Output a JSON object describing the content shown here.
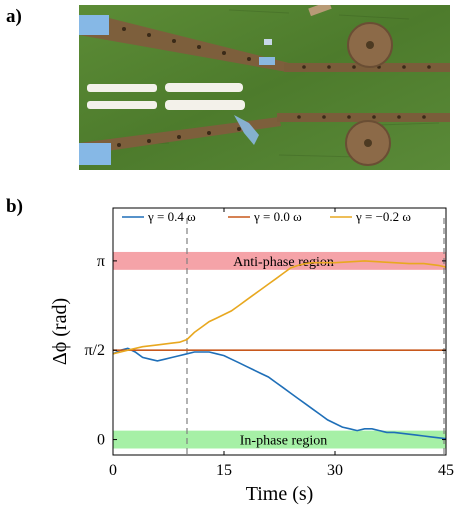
{
  "panels": {
    "a": "a)",
    "b": "b)"
  },
  "photo": {
    "icon": "robot-fish-photo",
    "colors": {
      "grass": "#4f7d2f",
      "grass_light": "#6a9a42",
      "strip": "#8a6a44",
      "tape": "#7fb0e0"
    }
  },
  "chart_data": {
    "type": "line",
    "xlabel": "Time (s)",
    "ylabel": "Δϕ (rad)",
    "xlim": [
      0,
      45
    ],
    "ylim": [
      -0.0864,
      1.296
    ],
    "x_ticks": [
      {
        "value": 0,
        "label": "0"
      },
      {
        "value": 15,
        "label": "15"
      },
      {
        "value": 30,
        "label": "30"
      },
      {
        "value": 45,
        "label": "45"
      }
    ],
    "y_ticks": [
      {
        "value": 0,
        "label": "0"
      },
      {
        "value": 0.5,
        "label": "π/2"
      },
      {
        "value": 1,
        "label": "π"
      }
    ],
    "regions": [
      {
        "label": "Anti-phase region",
        "y0": 0.95,
        "y1": 1.05,
        "color": "#f5a3a8"
      },
      {
        "label": "In-phase region",
        "y0": -0.05,
        "y1": 0.05,
        "color": "#a6f0a6"
      }
    ],
    "vlines": [
      10,
      45
    ],
    "legend": {
      "position": "top"
    },
    "series": [
      {
        "name": "γ = 0.4 ω",
        "color": "#1f6fb8",
        "x": [
          0,
          1,
          2,
          3,
          4,
          5,
          6,
          7,
          8,
          9,
          10,
          11,
          12,
          13,
          14,
          15,
          16,
          17,
          18,
          19,
          20,
          21,
          22,
          23,
          24,
          25,
          26,
          27,
          28,
          29,
          30,
          31,
          32,
          33,
          34,
          35,
          36,
          37,
          38,
          39,
          40,
          41,
          42,
          43,
          44,
          45
        ],
        "y": [
          0.48,
          0.5,
          0.51,
          0.49,
          0.46,
          0.45,
          0.44,
          0.45,
          0.46,
          0.47,
          0.48,
          0.49,
          0.49,
          0.49,
          0.48,
          0.47,
          0.45,
          0.43,
          0.41,
          0.39,
          0.37,
          0.35,
          0.32,
          0.29,
          0.26,
          0.23,
          0.2,
          0.17,
          0.14,
          0.11,
          0.09,
          0.07,
          0.06,
          0.05,
          0.06,
          0.06,
          0.05,
          0.04,
          0.04,
          0.035,
          0.03,
          0.025,
          0.02,
          0.015,
          0.01,
          0.005
        ]
      },
      {
        "name": "γ = 0.0 ω",
        "color": "#c8581c",
        "x": [
          0,
          45
        ],
        "y": [
          0.5,
          0.5
        ]
      },
      {
        "name": "γ = −0.2 ω",
        "color": "#e8a820",
        "x": [
          0,
          2,
          4,
          6,
          8,
          9,
          10,
          11,
          12,
          13,
          14,
          15,
          16,
          17,
          18,
          19,
          20,
          21,
          22,
          23,
          24,
          25,
          26,
          27,
          28,
          30,
          32,
          34,
          36,
          38,
          40,
          42,
          44,
          45
        ],
        "y": [
          0.48,
          0.5,
          0.52,
          0.53,
          0.54,
          0.545,
          0.56,
          0.6,
          0.63,
          0.66,
          0.68,
          0.7,
          0.72,
          0.75,
          0.78,
          0.81,
          0.84,
          0.87,
          0.9,
          0.93,
          0.96,
          0.975,
          0.985,
          0.99,
          0.99,
          0.99,
          0.995,
          1.0,
          0.995,
          0.99,
          0.985,
          0.985,
          0.975,
          0.965
        ]
      }
    ]
  }
}
